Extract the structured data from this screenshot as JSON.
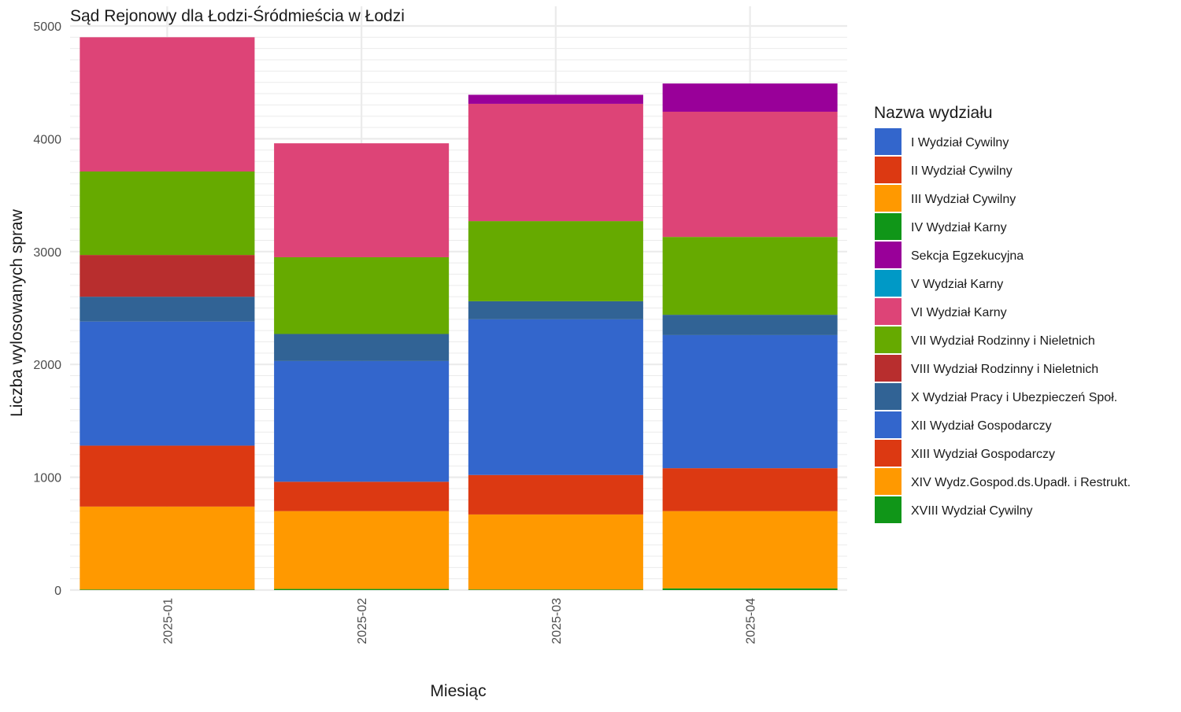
{
  "chart_data": {
    "type": "bar",
    "stacked": true,
    "title": "Sąd Rejonowy dla Łodzi-Śródmieścia w Łodzi",
    "xlabel": "Miesiąc",
    "ylabel": "Liczba wylosowanych spraw",
    "ylim": [
      0,
      5000
    ],
    "yticks": [
      0,
      1000,
      2000,
      3000,
      4000,
      5000
    ],
    "ytick_labels": [
      "0",
      "1000",
      "2000",
      "3000",
      "4000",
      "5000"
    ],
    "grid": true,
    "legend_title": "Nazwa wydziału",
    "legend_position": "right",
    "categories": [
      "2025-01",
      "2025-02",
      "2025-03",
      "2025-04"
    ],
    "series": [
      {
        "name": "I Wydział Cywilny",
        "color": "#3366CC",
        "values": [
          0,
          0,
          0,
          0
        ]
      },
      {
        "name": "II Wydział Cywilny",
        "color": "#DC3912",
        "values": [
          0,
          0,
          0,
          0
        ]
      },
      {
        "name": "III Wydział Cywilny",
        "color": "#FF9900",
        "values": [
          0,
          0,
          0,
          0
        ]
      },
      {
        "name": "IV Wydział Karny",
        "color": "#109618",
        "values": [
          0,
          0,
          0,
          0
        ]
      },
      {
        "name": "Sekcja Egzekucyjna",
        "color": "#990099",
        "values": [
          0,
          0,
          80,
          250
        ]
      },
      {
        "name": "V Wydział Karny",
        "color": "#0099C6",
        "values": [
          0,
          0,
          0,
          0
        ]
      },
      {
        "name": "VI Wydział Karny",
        "color": "#DD4477",
        "values": [
          1190,
          1010,
          1040,
          1110
        ]
      },
      {
        "name": "VII Wydział Rodzinny i Nieletnich",
        "color": "#66AA00",
        "values": [
          740,
          680,
          710,
          690
        ]
      },
      {
        "name": "VIII Wydział Rodzinny i Nieletnich",
        "color": "#B82E2E",
        "values": [
          370,
          0,
          0,
          0
        ]
      },
      {
        "name": "X Wydział Pracy i Ubezpieczeń Społ.",
        "color": "#316395",
        "values": [
          220,
          240,
          160,
          180
        ]
      },
      {
        "name": "XII Wydział Gospodarczy",
        "color": "#3366CC",
        "values": [
          1100,
          1070,
          1380,
          1180
        ]
      },
      {
        "name": "XIII Wydział Gospodarczy",
        "color": "#DC3912",
        "values": [
          540,
          260,
          350,
          380
        ]
      },
      {
        "name": "XIV Wydz.Gospod.ds.Upadł. i Restrukt.",
        "color": "#FF9900",
        "values": [
          735,
          690,
          665,
          685
        ]
      },
      {
        "name": "XVIII Wydział Cywilny",
        "color": "#109618",
        "values": [
          5,
          10,
          5,
          15
        ]
      }
    ]
  }
}
